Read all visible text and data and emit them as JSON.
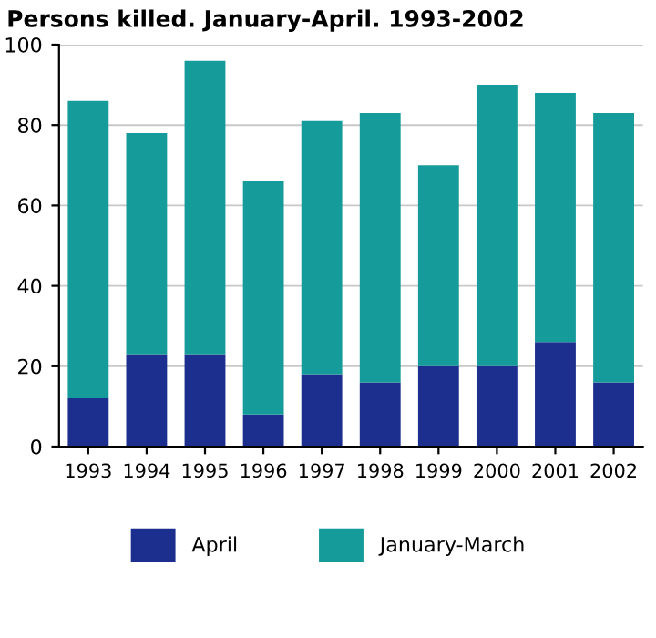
{
  "chart_data": {
    "type": "bar",
    "title": "Persons killed. January-April. 1993-2002",
    "categories": [
      "1993",
      "1994",
      "1995",
      "1996",
      "1997",
      "1998",
      "1999",
      "2000",
      "2001",
      "2002"
    ],
    "stacked": true,
    "series": [
      {
        "name": "April",
        "color": "#1c2f8e",
        "values": [
          12,
          23,
          23,
          8,
          18,
          16,
          20,
          20,
          26,
          16
        ]
      },
      {
        "name": "January-March",
        "color": "#169b9b",
        "values": [
          74,
          55,
          73,
          58,
          63,
          67,
          50,
          70,
          62,
          67
        ]
      }
    ],
    "ylim": [
      0,
      100
    ],
    "yticks": [
      0,
      20,
      40,
      60,
      80,
      100
    ],
    "grid": "y",
    "legend": "bottom"
  }
}
